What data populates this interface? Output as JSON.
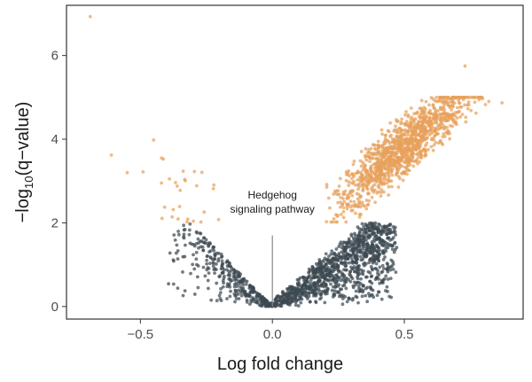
{
  "chart_data": {
    "type": "scatter",
    "title": "",
    "xlabel": "Log fold change",
    "ylabel_prefix": "−log",
    "ylabel_sub": "10",
    "ylabel_suffix": "(q−value)",
    "xlim": [
      -0.78,
      0.95
    ],
    "ylim": [
      -0.3,
      7.2
    ],
    "x_ticks": [
      {
        "value": -0.5,
        "label": "−0.5"
      },
      {
        "value": 0.0,
        "label": "0.0"
      },
      {
        "value": 0.5,
        "label": "0.5"
      }
    ],
    "y_ticks": [
      {
        "value": 0,
        "label": "0"
      },
      {
        "value": 2,
        "label": "2"
      },
      {
        "value": 4,
        "label": "4"
      },
      {
        "value": 6,
        "label": "6"
      }
    ],
    "grid": false,
    "legend": "none",
    "significance_threshold": 2,
    "colors": {
      "significant": "#e8a15c",
      "not_significant": "#3d4a52",
      "annotation_line": "#888888"
    },
    "outlier_points": [
      {
        "x": -0.69,
        "y": 6.93
      },
      {
        "x": 0.73,
        "y": 5.75
      },
      {
        "x": -0.61,
        "y": 3.62
      },
      {
        "x": -0.45,
        "y": 3.98
      },
      {
        "x": -0.49,
        "y": 3.22
      },
      {
        "x": -0.55,
        "y": 3.2
      },
      {
        "x": -0.42,
        "y": 3.55
      },
      {
        "x": -0.39,
        "y": 3.05
      },
      {
        "x": 0.87,
        "y": 4.87
      },
      {
        "x": 0.82,
        "y": 4.9
      }
    ],
    "point_clouds": [
      {
        "x0": 0.0,
        "x1": 0.45,
        "y0": 0.0,
        "y1": 2.0,
        "n": 1100,
        "region": "right-lower"
      },
      {
        "x0": 0.15,
        "x1": 0.85,
        "y0": 2.0,
        "y1": 5.0,
        "n": 1250,
        "region": "right-upper"
      },
      {
        "x0": -0.4,
        "x1": 0.0,
        "y0": 0.0,
        "y1": 2.0,
        "n": 350,
        "region": "left-lower"
      },
      {
        "x0": -0.42,
        "x1": -0.2,
        "y0": 2.0,
        "y1": 3.6,
        "n": 25,
        "region": "left-upper"
      }
    ],
    "annotations": [
      {
        "text_lines": [
          "Hedgehog",
          "signaling pathway"
        ],
        "x": 0.0,
        "y": 2.2
      }
    ]
  }
}
